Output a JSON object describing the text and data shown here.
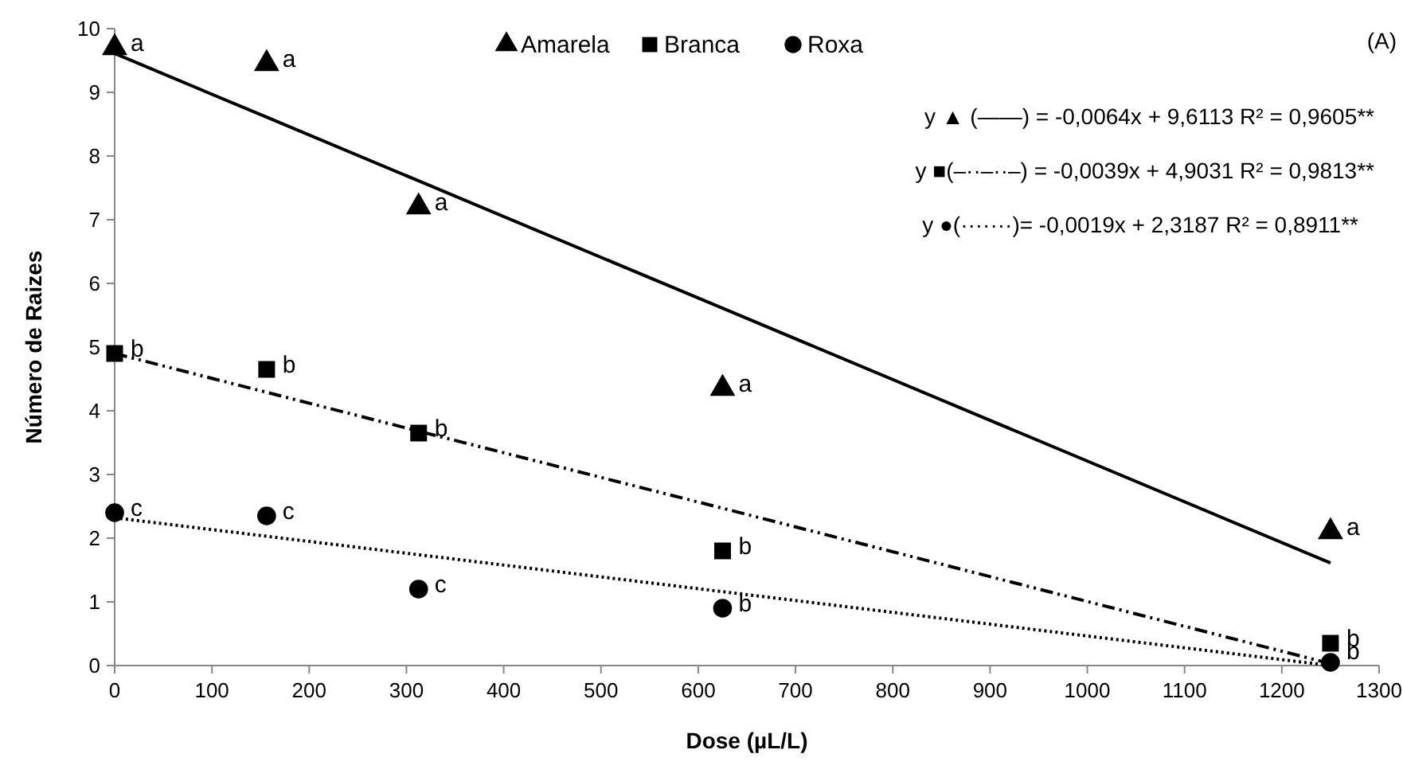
{
  "chart_data": {
    "type": "scatter",
    "xlabel": "Dose (µL/L)",
    "ylabel": "Número de Raizes",
    "x": [
      0,
      156.25,
      312.5,
      625,
      1250
    ],
    "series": [
      {
        "name": "Amarela",
        "color": "#000000",
        "marker": "triangle",
        "values": [
          9.7,
          9.45,
          7.2,
          4.35,
          2.1
        ]
      },
      {
        "name": "Branca",
        "color": "#000000",
        "marker": "square",
        "values": [
          4.9,
          4.65,
          3.65,
          1.8,
          0.35
        ]
      },
      {
        "name": "Roxa",
        "color": "#000000",
        "marker": "circle",
        "values": [
          2.4,
          2.35,
          1.2,
          0.9,
          0.05
        ]
      },
      {
        "type": "line",
        "color": "#000000",
        "line_style": "solid",
        "values": [
          9.61,
          8.61,
          7.61,
          5.61,
          1.61
        ]
      },
      {
        "type": "line",
        "color": "#000000",
        "line_style": "dashdot",
        "values": [
          4.9,
          4.29,
          3.68,
          2.47,
          0.03
        ]
      },
      {
        "type": "line",
        "color": "#000000",
        "line_style": "dotted",
        "values": [
          2.32,
          2.03,
          1.74,
          1.16,
          0
        ]
      }
    ],
    "xlim": [
      0,
      1300
    ],
    "xticks": [
      0,
      100,
      200,
      300,
      400,
      500,
      600,
      700,
      800,
      900,
      1000,
      1100,
      1200,
      1300
    ],
    "ylim": [
      0,
      10
    ],
    "yticks": [
      0,
      1,
      2,
      3,
      4,
      5,
      6,
      7,
      8,
      9,
      10
    ],
    "grid": false,
    "legend": "top",
    "annotations": [
      "(A)",
      "y ▲ (——) = -0,0064x + 9,6113   R² = 0,9605**",
      "y ■(–··–··–) = -0,0039x + 4,9031   R² = 0,9813**",
      "y ●(·······)=  -0,0019x + 2,3187  R² = 0,8911**",
      {
        "text": "a",
        "x": 0,
        "y": 9.7
      },
      {
        "text": "a",
        "x": 156.25,
        "y": 9.45
      },
      {
        "text": "a",
        "x": 312.5,
        "y": 7.2
      },
      {
        "text": "a",
        "x": 625,
        "y": 4.35
      },
      {
        "text": "a",
        "x": 1250,
        "y": 2.1
      },
      {
        "text": "b",
        "x": 0,
        "y": 4.9
      },
      {
        "text": "b",
        "x": 156.25,
        "y": 4.65
      },
      {
        "text": "b",
        "x": 312.5,
        "y": 3.65
      },
      {
        "text": "b",
        "x": 625,
        "y": 1.8
      },
      {
        "text": "b",
        "x": 1250,
        "y": 0.35
      },
      {
        "text": "c",
        "x": 0,
        "y": 2.4
      },
      {
        "text": "c",
        "x": 156.25,
        "y": 2.35
      },
      {
        "text": "c",
        "x": 312.5,
        "y": 1.2
      },
      {
        "text": "b",
        "x": 625,
        "y": 0.9
      },
      {
        "text": "b",
        "x": 1250,
        "y": 0.05
      }
    ]
  }
}
